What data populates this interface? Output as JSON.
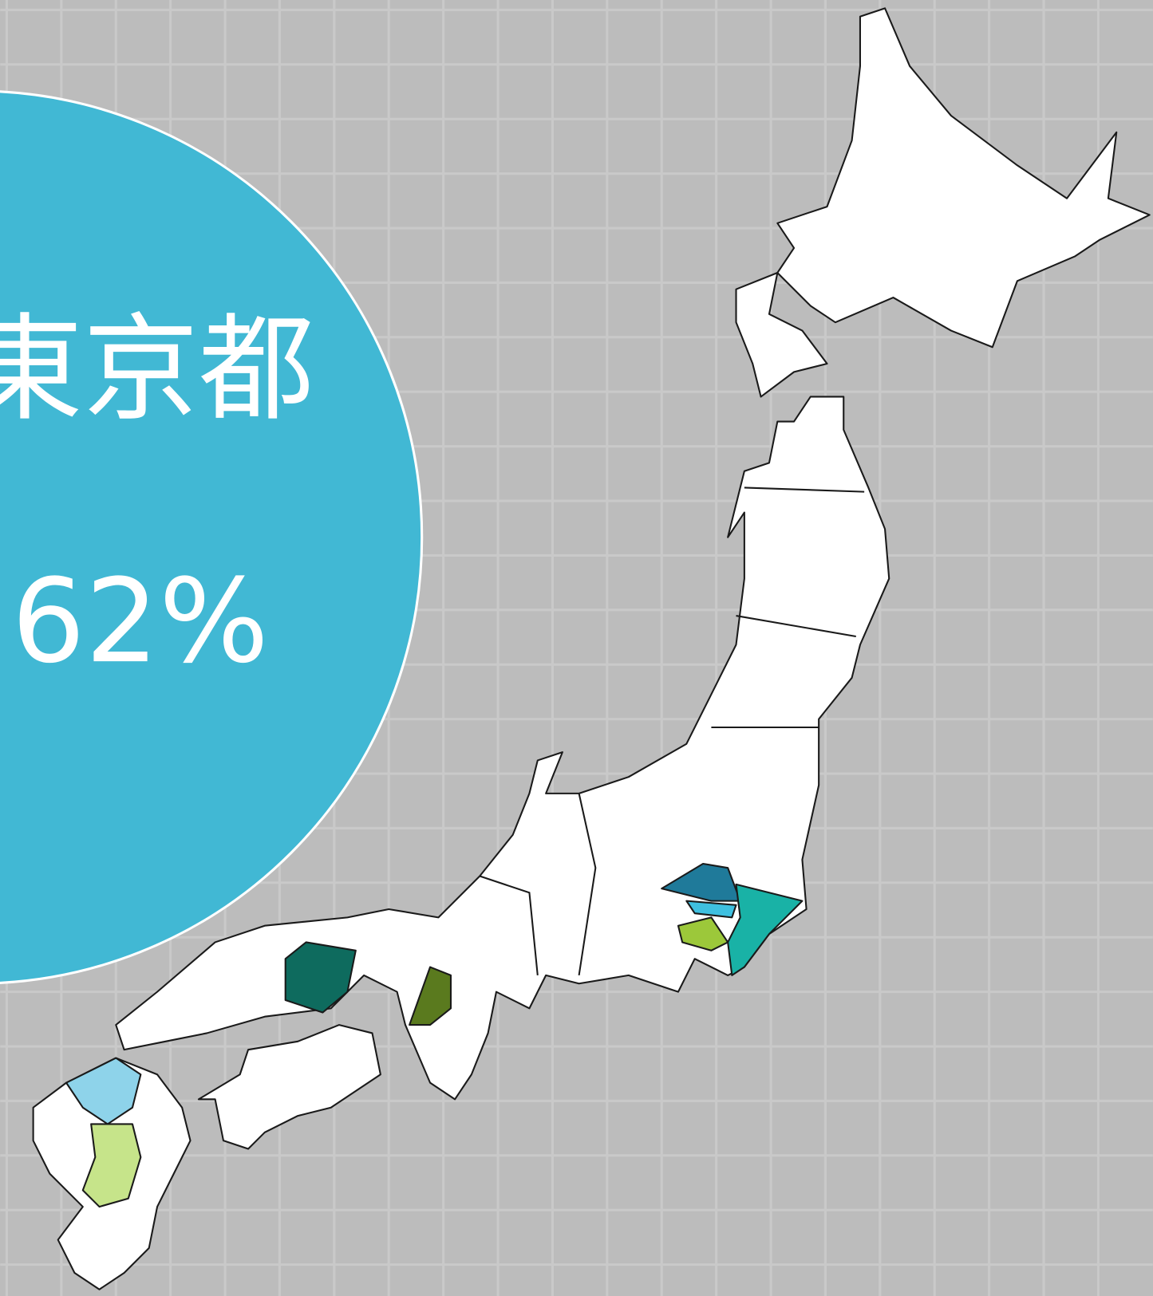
{
  "label": "東京都",
  "value_label": "62%"
}
